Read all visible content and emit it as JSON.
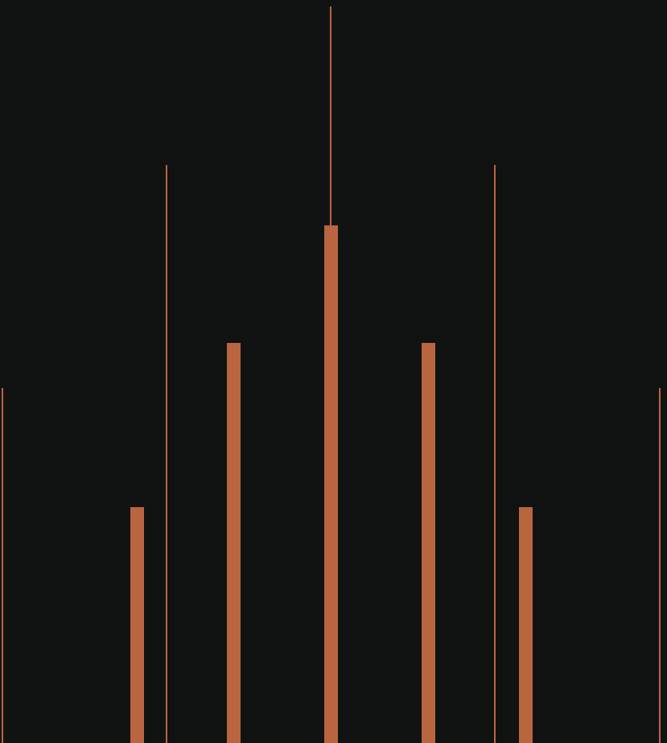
{
  "colors": {
    "background": "#111312",
    "accent": "#b9653f"
  },
  "bars": [
    {
      "x": 170,
      "level": 0.317
    },
    {
      "x": 290,
      "level": 0.538
    },
    {
      "x": 411,
      "level": 0.697
    },
    {
      "x": 532,
      "level": 0.538
    },
    {
      "x": 653,
      "level": 0.317
    }
  ],
  "lines": [
    {
      "x": 3,
      "level": 0.478
    },
    {
      "x": 207,
      "level": 0.778
    },
    {
      "x": 411,
      "level": 0.991
    },
    {
      "x": 615,
      "level": 0.778
    },
    {
      "x": 820,
      "level": 0.478
    }
  ]
}
